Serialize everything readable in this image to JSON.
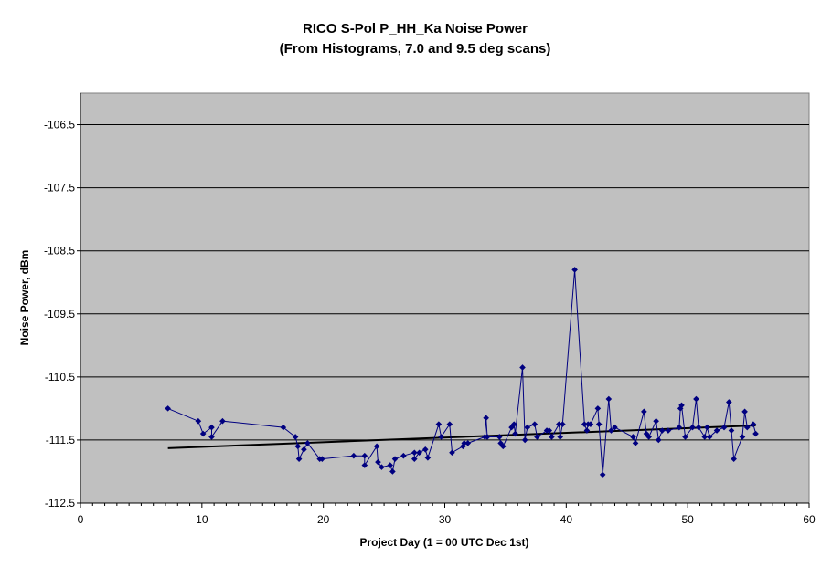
{
  "chart_data": {
    "type": "scatter",
    "title": "RICO S-Pol P_HH_Ka Noise Power",
    "subtitle": "(From Histograms, 7.0 and 9.5 deg scans)",
    "xlabel": "Project Day (1 = 00 UTC Dec 1st)",
    "ylabel": "Noise Power, dBm",
    "xlim": [
      0,
      60
    ],
    "ylim": [
      -112.5,
      -106
    ],
    "xticks": [
      0,
      10,
      20,
      30,
      40,
      50,
      60
    ],
    "yticks": [
      -112.5,
      -111.5,
      -110.5,
      -109.5,
      -108.5,
      -107.5,
      -106.5
    ],
    "xtick_labels": [
      "0",
      "10",
      "20",
      "30",
      "40",
      "50",
      "60"
    ],
    "ytick_labels": [
      "-112.5",
      "-111.5",
      "-110.5",
      "-109.5",
      "-108.5",
      "-107.5",
      "-106.5"
    ],
    "grid": "horizontal",
    "legend": "none",
    "colors": {
      "plot_area": "#c0c0c0",
      "series": "#000080",
      "trend": "#000000",
      "gridline": "#000000"
    },
    "series": [
      {
        "style": "line-with-diamond-markers",
        "x": [
          7.2,
          9.7,
          10.1,
          10.8,
          10.8,
          11.7,
          16.7,
          17.7,
          17.9,
          18.0,
          18.4,
          18.7,
          19.7,
          19.9,
          22.5,
          23.4,
          23.4,
          24.4,
          24.5,
          24.8,
          25.5,
          25.7,
          25.9,
          26.6,
          27.5,
          27.5,
          27.9,
          28.4,
          28.6,
          29.5,
          29.7,
          30.4,
          30.6,
          31.5,
          31.6,
          31.9,
          33.3,
          33.4,
          33.5,
          34.5,
          34.6,
          34.8,
          35.5,
          35.7,
          35.8,
          36.4,
          36.6,
          36.8,
          37.4,
          37.6,
          38.4,
          38.6,
          38.8,
          39.4,
          39.5,
          39.7,
          40.7,
          41.5,
          41.7,
          41.8,
          42.0,
          42.6,
          42.7,
          43.0,
          43.5,
          43.7,
          44.0,
          45.5,
          45.7,
          46.4,
          46.6,
          46.8,
          47.4,
          47.6,
          47.9,
          48.4,
          49.3,
          49.4,
          49.5,
          49.8,
          50.4,
          50.7,
          50.9,
          51.4,
          51.6,
          51.8,
          52.4,
          53.0,
          53.4,
          53.6,
          53.8,
          54.5,
          54.7,
          54.9,
          55.4,
          55.6
        ],
        "y": [
          -111.0,
          -111.2,
          -111.4,
          -111.3,
          -111.45,
          -111.2,
          -111.3,
          -111.45,
          -111.6,
          -111.8,
          -111.65,
          -111.55,
          -111.8,
          -111.8,
          -111.75,
          -111.75,
          -111.9,
          -111.6,
          -111.85,
          -111.93,
          -111.9,
          -112.0,
          -111.8,
          -111.75,
          -111.7,
          -111.8,
          -111.7,
          -111.65,
          -111.78,
          -111.25,
          -111.45,
          -111.25,
          -111.7,
          -111.6,
          -111.55,
          -111.55,
          -111.45,
          -111.15,
          -111.45,
          -111.45,
          -111.55,
          -111.6,
          -111.3,
          -111.25,
          -111.4,
          -110.35,
          -111.5,
          -111.3,
          -111.25,
          -111.45,
          -111.35,
          -111.35,
          -111.45,
          -111.25,
          -111.45,
          -111.25,
          -108.8,
          -111.25,
          -111.35,
          -111.25,
          -111.25,
          -111.0,
          -111.25,
          -112.05,
          -110.85,
          -111.35,
          -111.3,
          -111.45,
          -111.55,
          -111.05,
          -111.4,
          -111.45,
          -111.2,
          -111.5,
          -111.35,
          -111.35,
          -111.3,
          -111.0,
          -110.95,
          -111.45,
          -111.3,
          -110.85,
          -111.3,
          -111.45,
          -111.3,
          -111.45,
          -111.35,
          -111.3,
          -110.9,
          -111.35,
          -111.8,
          -111.45,
          -111.05,
          -111.3,
          -111.25,
          -111.4
        ]
      },
      {
        "style": "linear-trendline",
        "x": [
          7.2,
          55.6
        ],
        "y": [
          -111.63,
          -111.27
        ]
      }
    ]
  }
}
